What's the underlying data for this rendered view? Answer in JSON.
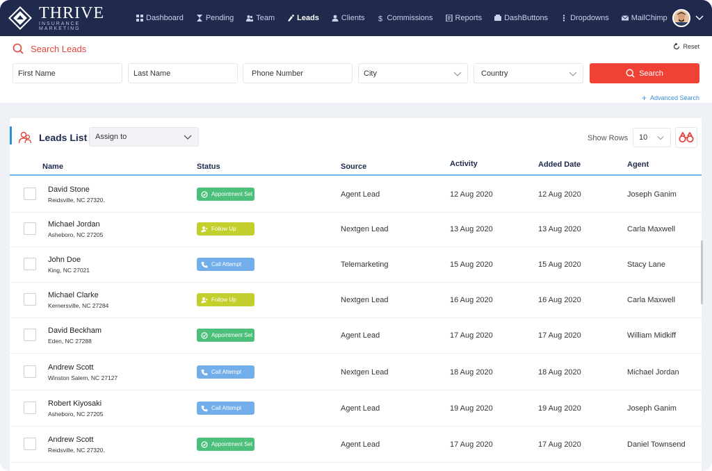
{
  "brand": {
    "title": "THRIVE",
    "subtitle": "INSURANCE MARKETING"
  },
  "nav": {
    "items": [
      {
        "label": "Dashboard",
        "icon": "dashboard-icon"
      },
      {
        "label": "Pending",
        "icon": "hourglass-icon"
      },
      {
        "label": "Team",
        "icon": "team-icon"
      },
      {
        "label": "Leads",
        "icon": "leads-icon",
        "active": true
      },
      {
        "label": "Clients",
        "icon": "client-icon"
      },
      {
        "label": "Commissions",
        "icon": "dollar-icon"
      },
      {
        "label": "Reports",
        "icon": "report-icon"
      },
      {
        "label": "DashButtons",
        "icon": "dashbuttons-icon"
      },
      {
        "label": "Dropdowns",
        "icon": "dropdown-icon"
      },
      {
        "label": "MailChimp",
        "icon": "mail-icon"
      }
    ]
  },
  "search": {
    "title": "Search Leads",
    "reset_label": "Reset",
    "first_name": "First Name",
    "last_name": "Last Name",
    "phone": "Phone Number",
    "city": "City",
    "country": "Country",
    "button": "Search",
    "advanced": "Advanced Search"
  },
  "list": {
    "title": "Leads List",
    "assign_label": "Assign to",
    "show_rows_label": "Show Rows",
    "rows_value": "10",
    "columns": [
      "Name",
      "Status",
      "Source",
      "Activity",
      "Added Date",
      "Agent"
    ],
    "rows": [
      {
        "name": "David Stone",
        "address": "Reidsville, NC 27320.",
        "status": "Appointment Set",
        "status_type": "appointment",
        "source": "Agent Lead",
        "activity": "12 Aug 2020",
        "added": "12 Aug 2020",
        "agent": "Joseph Ganim"
      },
      {
        "name": "Michael Jordan",
        "address": "Asheboro, NC 27205",
        "status": "Follow Up",
        "status_type": "followup",
        "source": "Nextgen Lead",
        "activity": "13 Aug 2020",
        "added": "13 Aug 2020",
        "agent": "Carla Maxwell"
      },
      {
        "name": "John Doe",
        "address": "King, NC 27021",
        "status": "Call Attempt",
        "status_type": "call",
        "source": "Telemarketing",
        "activity": "15 Aug 2020",
        "added": "15 Aug 2020",
        "agent": "Stacy Lane"
      },
      {
        "name": "Michael Clarke",
        "address": "Kernersville, NC 27284",
        "status": "Follow Up",
        "status_type": "followup",
        "source": "Nextgen Lead",
        "activity": "16 Aug 2020",
        "added": "16 Aug 2020",
        "agent": "Carla Maxwell"
      },
      {
        "name": "David Beckham",
        "address": "Eden, NC 27288",
        "status": "Appointment Set",
        "status_type": "appointment",
        "source": "Agent Lead",
        "activity": "17 Aug 2020",
        "added": "17 Aug 2020",
        "agent": "William Midkiff"
      },
      {
        "name": "Andrew Scott",
        "address": "Winston Salem, NC 27127",
        "status": "Call Attempt",
        "status_type": "call",
        "source": "Nextgen Lead",
        "activity": "18 Aug 2020",
        "added": "18 Aug 2020",
        "agent": "Michael Jordan"
      },
      {
        "name": "Robert Kiyosaki",
        "address": "Asheboro, NC 27205",
        "status": "Call Attempt",
        "status_type": "call",
        "source": "Agent Lead",
        "activity": "19 Aug 2020",
        "added": "19 Aug 2020",
        "agent": "Joseph Ganim"
      },
      {
        "name": "Andrew Scott",
        "address": "Reidsville, NC 27320.",
        "status": "Appointment Set",
        "status_type": "appointment",
        "source": "Agent Lead",
        "activity": "17 Aug 2020",
        "added": "17 Aug 2020",
        "agent": "Daniel Townsend"
      }
    ]
  },
  "colors": {
    "nav_bg": "#1f2a4d",
    "accent_red": "#ef4136",
    "appointment": "#4cc07a",
    "followup": "#c3cf2c",
    "call": "#72aee9",
    "link_blue": "#3c8ed8"
  }
}
